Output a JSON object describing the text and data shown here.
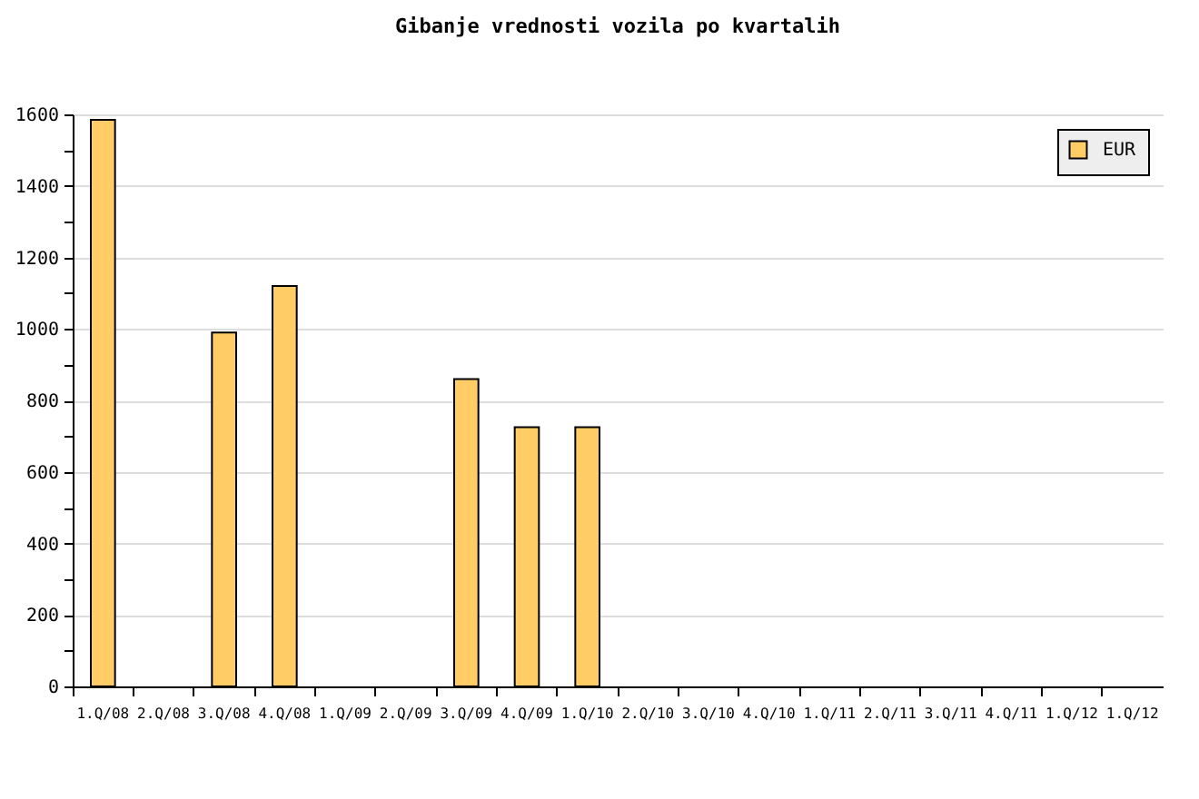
{
  "chart_data": {
    "type": "bar",
    "title": "Gibanje vrednosti vozila po kvartalih",
    "categories": [
      "1.Q/08",
      "2.Q/08",
      "3.Q/08",
      "4.Q/08",
      "1.Q/09",
      "2.Q/09",
      "3.Q/09",
      "4.Q/09",
      "1.Q/10",
      "2.Q/10",
      "3.Q/10",
      "4.Q/10",
      "1.Q/11",
      "2.Q/11",
      "3.Q/11",
      "4.Q/11",
      "1.Q/12",
      "1.Q/12"
    ],
    "series": [
      {
        "name": "EUR",
        "color": "#ffcc66",
        "values": [
          1585,
          null,
          990,
          1120,
          null,
          null,
          860,
          725,
          725,
          null,
          null,
          null,
          null,
          null,
          null,
          null,
          null,
          null
        ]
      }
    ],
    "ylim": [
      0,
      1600
    ],
    "yticks": [
      0,
      {
        "value": 100,
        "label": null
      },
      200,
      {
        "value": 300,
        "label": null
      },
      400,
      {
        "value": 500,
        "label": null
      },
      600,
      {
        "value": 700,
        "label": null
      },
      800,
      {
        "value": 900,
        "label": null
      },
      1000,
      {
        "value": 1100,
        "label": null
      },
      1200,
      {
        "value": 1300,
        "label": null
      },
      1400,
      {
        "value": 1500,
        "label": null
      },
      1600
    ],
    "grid": "y",
    "legend": "top right"
  }
}
